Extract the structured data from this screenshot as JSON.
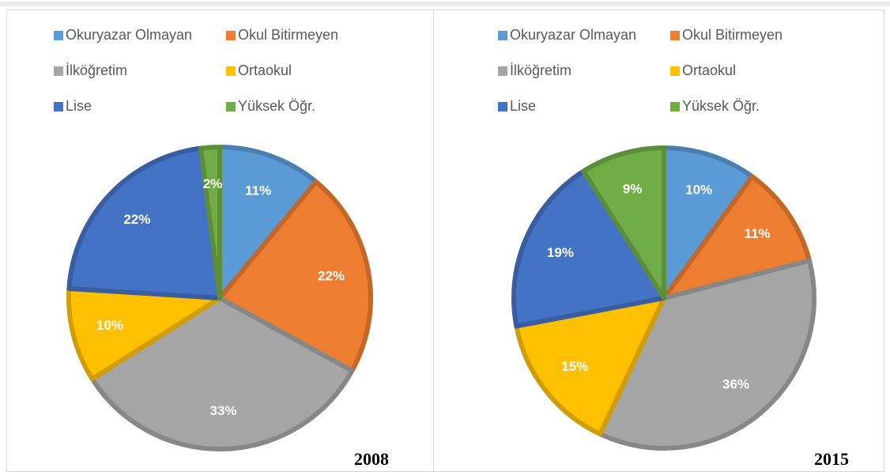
{
  "chart_data": [
    {
      "type": "pie",
      "title": "2008",
      "categories": [
        "Okuryazar Olmayan",
        "Okul Bitirmeyen",
        "İlköğretim",
        "Ortaokul",
        "Lise",
        "Yüksek Öğr."
      ],
      "values": [
        11,
        22,
        33,
        10,
        22,
        2
      ],
      "value_labels": [
        "11%",
        "22%",
        "33%",
        "10%",
        "22%",
        "2%"
      ],
      "colors": [
        "#5b9bd5",
        "#ed7d31",
        "#a5a5a5",
        "#ffc000",
        "#4472c4",
        "#70ad47"
      ]
    },
    {
      "type": "pie",
      "title": "2015",
      "categories": [
        "Okuryazar Olmayan",
        "Okul Bitirmeyen",
        "İlköğretim",
        "Ortaokul",
        "Lise",
        "Yüksek Öğr."
      ],
      "values": [
        10,
        11,
        36,
        15,
        19,
        9
      ],
      "value_labels": [
        "10%",
        "11%",
        "36%",
        "15%",
        "19%",
        "9%"
      ],
      "colors": [
        "#5b9bd5",
        "#ed7d31",
        "#a5a5a5",
        "#ffc000",
        "#4472c4",
        "#70ad47"
      ]
    }
  ]
}
